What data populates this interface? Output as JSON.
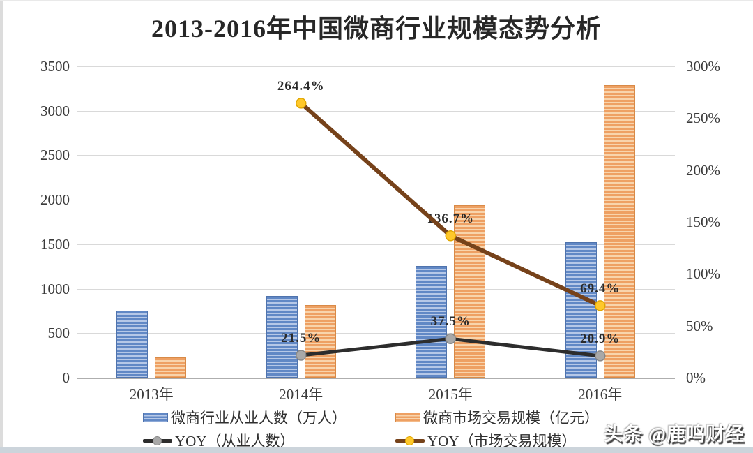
{
  "chart_data": {
    "type": "bar",
    "title": "2013-2016年中国微商行业规模态势分析",
    "categories": [
      "2013年",
      "2014年",
      "2015年",
      "2016年"
    ],
    "bar_series": [
      {
        "name": "微商行业从业人数（万人）",
        "axis": "left",
        "values": [
          753,
          915,
          1258,
          1521
        ],
        "color": "#6188c5",
        "color_light": "#b6c8e7",
        "border": "#4f73ad"
      },
      {
        "name": "微商市场交易规模（亿元）",
        "axis": "left",
        "values": [
          225,
          820,
          1941,
          3288
        ],
        "color": "#eea063",
        "color_light": "#f8d4ac",
        "border": "#d88a47"
      }
    ],
    "line_series": [
      {
        "name": "YOY（从业人数）",
        "axis": "right",
        "values": [
          null,
          21.5,
          37.5,
          20.9
        ],
        "point_labels": [
          "",
          "21.5%",
          "37.5%",
          "20.9%"
        ],
        "line_color": "#2d2d2d",
        "line_width": 5,
        "marker_fill": "#a8a8a8",
        "marker_stroke": "#878787"
      },
      {
        "name": "YOY（市场交易规模）",
        "axis": "right",
        "values": [
          null,
          264.4,
          136.7,
          69.4
        ],
        "point_labels": [
          "",
          "264.4%",
          "136.7%",
          "69.4%"
        ],
        "line_color": "#76421a",
        "line_width": 6,
        "marker_fill": "#ffc82a",
        "marker_stroke": "#e0a600"
      }
    ],
    "left_axis": {
      "min": 0,
      "max": 3500,
      "step": 500,
      "tick_labels": [
        "0",
        "500",
        "1000",
        "1500",
        "2000",
        "2500",
        "3000",
        "3500"
      ]
    },
    "right_axis": {
      "min": 0,
      "max": 300,
      "step": 50,
      "tick_labels": [
        "0%",
        "50%",
        "100%",
        "150%",
        "200%",
        "250%",
        "300%"
      ]
    },
    "grid": true,
    "legend_position": "bottom"
  },
  "watermark": {
    "text": "头条 @鹿鸣财经"
  },
  "colors": {
    "grid": "#d9d9d9",
    "axis_line": "#aeaeae",
    "text": "#2f2f2f"
  }
}
